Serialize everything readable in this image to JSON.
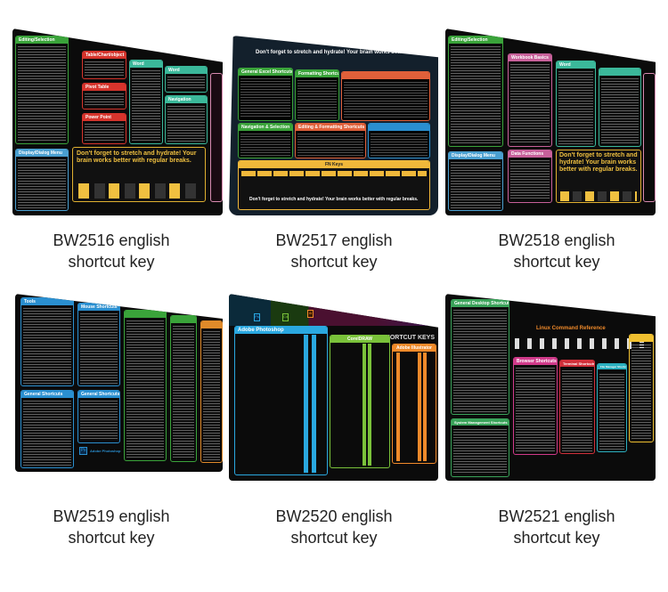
{
  "products": [
    {
      "caption_line1": "BW2516 english",
      "caption_line2": "shortcut key",
      "panels": [
        {
          "title": "Editing/Selection",
          "color": "#3aa33a"
        },
        {
          "title": "Table/Chart/object",
          "color": "#d6342c"
        },
        {
          "title": "Pivot Table",
          "color": "#d6342c"
        },
        {
          "title": "Power Point",
          "color": "#d6342c"
        },
        {
          "title": "Word",
          "color": "#3bb89a"
        },
        {
          "title": "Word",
          "color": "#3bb89a"
        },
        {
          "title": "Navigation",
          "color": "#3bb89a"
        },
        {
          "title": "Display/Dialog Menu",
          "color": "#4a9fd0"
        }
      ],
      "banner": "Don't forget to stretch and hydrate! Your brain works better with regular breaks."
    },
    {
      "caption_line1": "BW2517 english",
      "caption_line2": "shortcut key",
      "panels": [
        {
          "title": "General Excel Shortcuts",
          "color": "#3aa33a"
        },
        {
          "title": "Formatting Shortcuts",
          "color": "#3aa33a"
        },
        {
          "title": "Navigation & Selection",
          "color": "#3aa33a"
        },
        {
          "title": "Editing & Formatting Shortcuts",
          "color": "#e0603a"
        },
        {
          "title": "FN Keys",
          "color": "#f0b83a"
        }
      ],
      "banner": "Don't forget to stretch and hydrate! Your brain works better with regular breaks."
    },
    {
      "caption_line1": "BW2518 english",
      "caption_line2": "shortcut key",
      "panels": [
        {
          "title": "Editing/Selection",
          "color": "#3aa33a"
        },
        {
          "title": "Workbook Basics",
          "color": "#c8609a"
        },
        {
          "title": "Word",
          "color": "#3bb89a"
        },
        {
          "title": "Data Functions",
          "color": "#c8609a"
        },
        {
          "title": "Display/Dialog Menu",
          "color": "#4a9fd0"
        }
      ],
      "banner": "Don't forget to stretch and hydrate! Your brain works better with regular breaks."
    },
    {
      "caption_line1": "BW2519 english",
      "caption_line2": "shortcut key",
      "panels": [
        {
          "title": "Tools",
          "color": "#2a8fd0"
        },
        {
          "title": "Mouse Shortcuts",
          "color": "#2a8fd0"
        },
        {
          "title": "General Shortcuts",
          "color": "#2a8fd0"
        },
        {
          "title": "General Shortcuts",
          "color": "#2a8fd0"
        },
        {
          "title": "",
          "color": "#3aa33a"
        },
        {
          "title": "",
          "color": "#e08a2a"
        },
        {
          "title": "Adobe Photoshop",
          "color": "#2a8fd0"
        }
      ],
      "banner": ""
    },
    {
      "caption_line1": "BW2520 english",
      "caption_line2": "shortcut key",
      "panels": [
        {
          "title": "Adobe Photoshop",
          "color": "#2aa8e0"
        },
        {
          "title": "CorelDRAW",
          "color": "#7ac23a"
        },
        {
          "title": "Adobe Illustrator",
          "color": "#f08a2a"
        }
      ],
      "banner": "COMMON SHORTCUT KEYS"
    },
    {
      "caption_line1": "BW2521 english",
      "caption_line2": "shortcut key",
      "panels": [
        {
          "title": "General Desktop Shortcuts",
          "color": "#3aa35a"
        },
        {
          "title": "Browser Shortcuts",
          "color": "#d03a8a"
        },
        {
          "title": "Terminal Shortcuts",
          "color": "#d0303a"
        },
        {
          "title": "File Manager Shortcuts",
          "color": "#2ab0c0"
        },
        {
          "title": "System Management Shortcuts",
          "color": "#3aa35a"
        },
        {
          "title": "",
          "color": "#f0c030"
        }
      ],
      "banner": "Linux Command Reference"
    }
  ]
}
